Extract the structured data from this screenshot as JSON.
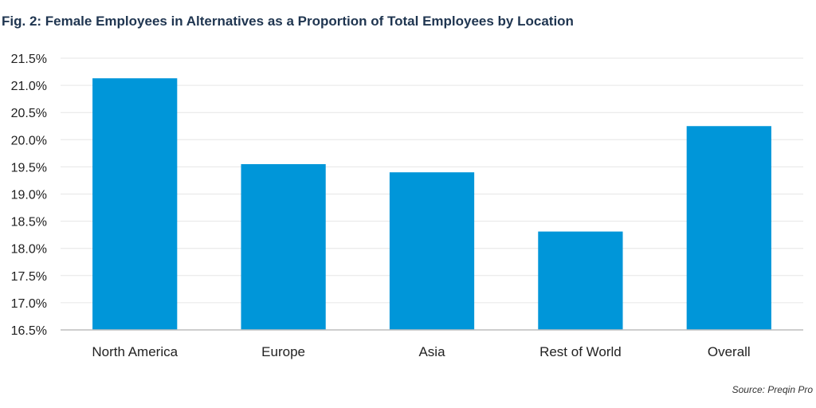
{
  "chart_data": {
    "type": "bar",
    "title": "Fig. 2: Female Employees in Alternatives as a Proportion of Total Employees by Location",
    "categories": [
      "North America",
      "Europe",
      "Asia",
      "Rest of World",
      "Overall"
    ],
    "values": [
      21.13,
      19.55,
      19.4,
      18.31,
      20.25
    ],
    "ylim": [
      16.5,
      21.5
    ],
    "yticks": [
      16.5,
      17.0,
      17.5,
      18.0,
      18.5,
      19.0,
      19.5,
      20.0,
      20.5,
      21.0,
      21.5
    ],
    "ytick_labels": [
      "16.5%",
      "17.0%",
      "17.5%",
      "18.0%",
      "18.5%",
      "19.0%",
      "19.5%",
      "20.0%",
      "20.5%",
      "21.0%",
      "21.5%"
    ],
    "grid": true,
    "bar_color": "#0096d9",
    "source": "Source: Preqin Pro"
  }
}
